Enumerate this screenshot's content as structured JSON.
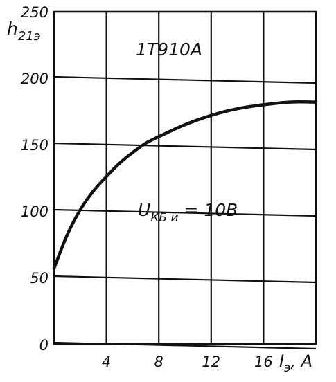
{
  "chart_data": {
    "type": "line",
    "title": "1T910A",
    "ylabel": "h",
    "ylabel_sub": "21э",
    "xlabel": "Iэ, A",
    "xlabel_main": "I",
    "xlabel_sub": "э",
    "xlabel_unit": ", A",
    "xlim": [
      0,
      20
    ],
    "ylim": [
      0,
      250
    ],
    "x_ticks": [
      0,
      4,
      8,
      12,
      16
    ],
    "y_ticks": [
      0,
      50,
      100,
      150,
      200,
      250
    ],
    "annotation": {
      "text_main": "U",
      "text_sub": "КБ и",
      "text_rest": " = 10B"
    },
    "series": [
      {
        "x": [
          0,
          1,
          2,
          3,
          4,
          5,
          6,
          7,
          8,
          10,
          12,
          14,
          16,
          18,
          20
        ],
        "y": [
          57,
          82,
          101,
          115,
          126,
          136,
          144,
          151,
          156,
          165,
          172,
          177,
          180,
          182,
          182
        ]
      }
    ]
  }
}
